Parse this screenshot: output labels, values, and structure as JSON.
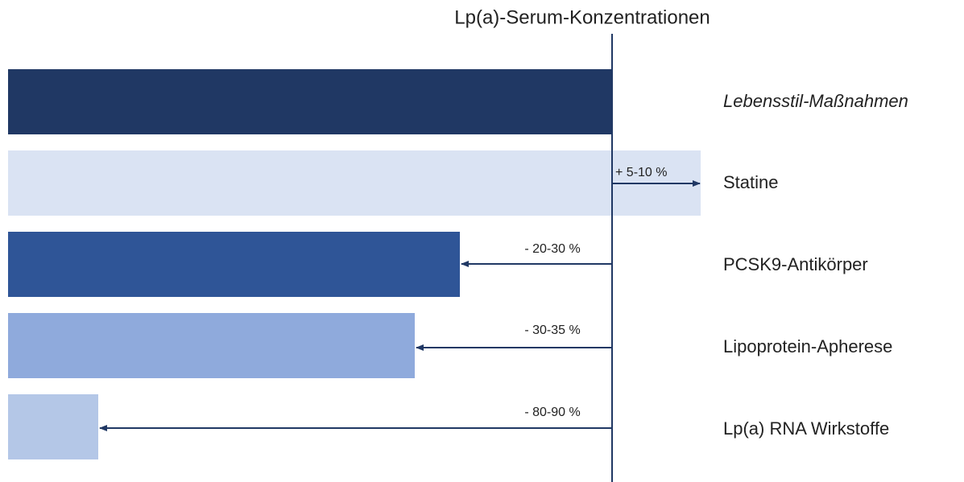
{
  "title": "Lp(a)-Serum-Konzentrationen",
  "rows": [
    {
      "label": "Lebensstil-Maßnahmen"
    },
    {
      "label": "Statine",
      "change": "+ 5-10 %"
    },
    {
      "label": "PCSK9-Antikörper",
      "change": "- 20-30 %"
    },
    {
      "label": "Lipoprotein-Apherese",
      "change": "- 30-35 %"
    },
    {
      "label": "Lp(a) RNA Wirkstoffe",
      "change": "- 80-90 %"
    }
  ]
}
